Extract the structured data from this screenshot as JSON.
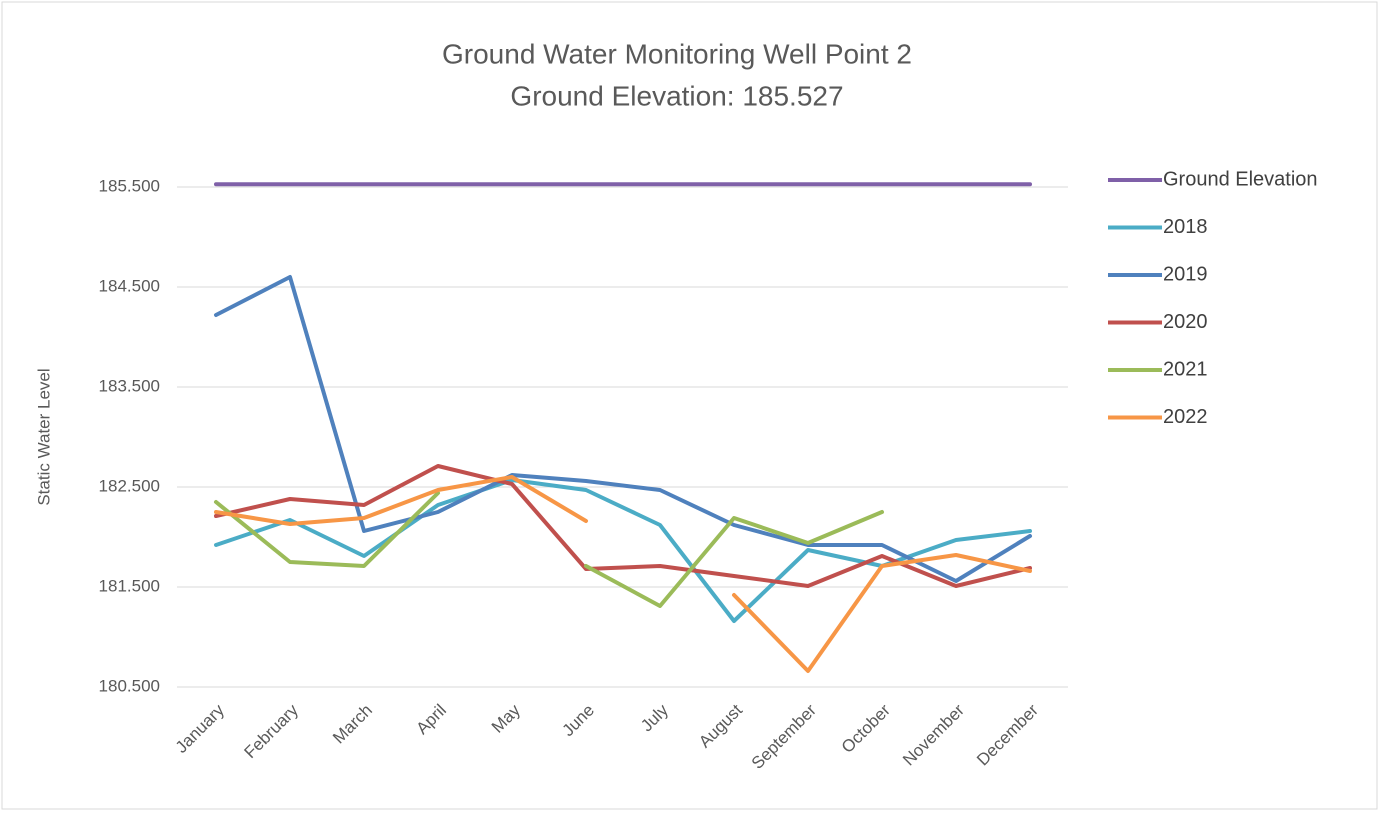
{
  "chart_data": {
    "type": "line",
    "title": "Ground Water Monitoring Well Point 2",
    "subtitle": "Ground Elevation: 185.527",
    "y_label": "Static Water Level",
    "categories": [
      "January",
      "February",
      "March",
      "April",
      "May",
      "June",
      "July",
      "August",
      "September",
      "October",
      "November",
      "December"
    ],
    "series": [
      {
        "name": "Ground Elevation",
        "color": "#7f60a8",
        "values": [
          185.527,
          185.527,
          185.527,
          185.527,
          185.527,
          185.527,
          185.527,
          185.527,
          185.527,
          185.527,
          185.527,
          185.527
        ]
      },
      {
        "name": "2018",
        "color": "#4bacc6",
        "values": [
          181.92,
          182.17,
          181.81,
          182.32,
          182.57,
          182.47,
          182.12,
          181.16,
          181.87,
          181.71,
          181.97,
          182.06
        ]
      },
      {
        "name": "2019",
        "color": "#4f81bd",
        "values": [
          184.22,
          184.6,
          182.06,
          182.25,
          182.62,
          182.56,
          182.47,
          182.12,
          181.92,
          181.92,
          181.56,
          182.01
        ]
      },
      {
        "name": "2020",
        "color": "#c0504d",
        "values": [
          182.21,
          182.38,
          182.32,
          182.71,
          182.53,
          181.68,
          181.71,
          181.61,
          181.51,
          181.81,
          181.51,
          181.69
        ]
      },
      {
        "name": "2021",
        "color": "#9bbb59",
        "values": [
          182.35,
          181.75,
          181.71,
          182.44,
          null,
          181.71,
          181.31,
          182.19,
          181.94,
          182.25,
          null,
          null
        ]
      },
      {
        "name": "2022",
        "color": "#f79646",
        "values": [
          182.25,
          182.13,
          182.19,
          182.47,
          182.6,
          182.16,
          null,
          181.42,
          180.66,
          181.71,
          181.82,
          181.66
        ]
      }
    ],
    "ylim": [
      180.5,
      185.5
    ],
    "yticks": [
      {
        "value": 180.5,
        "label": "180.500"
      },
      {
        "value": 181.5,
        "label": "181.500"
      },
      {
        "value": 182.5,
        "label": "182.500"
      },
      {
        "value": 183.5,
        "label": "183.500"
      },
      {
        "value": 184.5,
        "label": "184.500"
      },
      {
        "value": 185.5,
        "label": "185.500"
      }
    ],
    "grid": true,
    "legend": "right"
  }
}
